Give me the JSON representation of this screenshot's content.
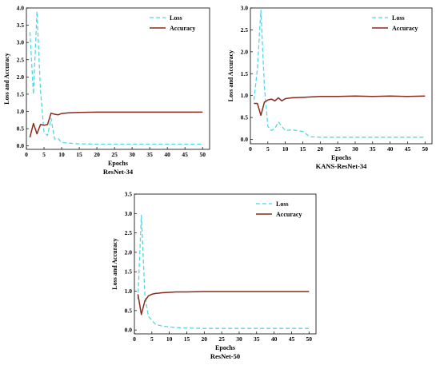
{
  "chart_data": [
    {
      "type": "line",
      "caption": "ResNet-34",
      "xlabel": "Epochs",
      "ylabel": "Loss and Accuracy",
      "xlim": [
        0,
        52
      ],
      "ylim": [
        -0.1,
        4.0
      ],
      "xticks": [
        "0",
        "5",
        "10",
        "15",
        "20",
        "25",
        "30",
        "35",
        "40",
        "45",
        "50"
      ],
      "yticks": [
        "0.0",
        "0.5",
        "1.0",
        "1.5",
        "2.0",
        "2.5",
        "3.0",
        "3.5",
        "4.0"
      ],
      "legend": "top-right",
      "series": [
        {
          "name": "Loss",
          "style": "dashed",
          "color": "#4fd8e6",
          "x": [
            1,
            2,
            3,
            4,
            5,
            6,
            7,
            8,
            9,
            10,
            12,
            15,
            20,
            25,
            30,
            35,
            40,
            45,
            50
          ],
          "y": [
            3.3,
            1.5,
            3.9,
            1.6,
            0.4,
            0.3,
            0.8,
            0.2,
            0.22,
            0.1,
            0.08,
            0.06,
            0.05,
            0.05,
            0.05,
            0.05,
            0.05,
            0.05,
            0.05
          ]
        },
        {
          "name": "Accuracy",
          "style": "solid",
          "color": "#8b2a1a",
          "x": [
            1,
            2,
            3,
            4,
            5,
            6,
            7,
            8,
            9,
            10,
            12,
            15,
            20,
            25,
            30,
            35,
            40,
            45,
            50
          ],
          "y": [
            0.25,
            0.65,
            0.35,
            0.62,
            0.6,
            0.62,
            0.95,
            0.92,
            0.9,
            0.94,
            0.96,
            0.97,
            0.98,
            0.98,
            0.98,
            0.98,
            0.98,
            0.98,
            0.98
          ]
        }
      ]
    },
    {
      "type": "line",
      "caption": "KANS-ResNet-34",
      "xlabel": "Epochs",
      "ylabel": "Loss and Accuracy",
      "xlim": [
        0,
        52
      ],
      "ylim": [
        -0.1,
        3.0
      ],
      "xticks": [
        "0",
        "5",
        "10",
        "15",
        "20",
        "25",
        "30",
        "35",
        "40",
        "45",
        "50"
      ],
      "yticks": [
        "0.0",
        "0.5",
        "1.0",
        "1.5",
        "2.0",
        "2.5",
        "3.0"
      ],
      "legend": "top-right",
      "series": [
        {
          "name": "Loss",
          "style": "dashed",
          "color": "#4fd8e6",
          "x": [
            1,
            2,
            3,
            4,
            5,
            6,
            7,
            8,
            9,
            10,
            12,
            15,
            17,
            20,
            25,
            30,
            35,
            40,
            45,
            50
          ],
          "y": [
            0.9,
            1.6,
            2.95,
            1.2,
            0.3,
            0.2,
            0.25,
            0.4,
            0.3,
            0.2,
            0.22,
            0.18,
            0.06,
            0.05,
            0.05,
            0.05,
            0.05,
            0.05,
            0.05,
            0.05
          ]
        },
        {
          "name": "Accuracy",
          "style": "solid",
          "color": "#8b2a1a",
          "x": [
            1,
            2,
            3,
            4,
            5,
            6,
            7,
            8,
            9,
            10,
            12,
            15,
            20,
            25,
            30,
            35,
            40,
            45,
            50
          ],
          "y": [
            0.82,
            0.82,
            0.55,
            0.85,
            0.9,
            0.92,
            0.88,
            0.95,
            0.88,
            0.93,
            0.95,
            0.96,
            0.98,
            0.98,
            0.99,
            0.98,
            0.99,
            0.98,
            0.99
          ]
        }
      ]
    },
    {
      "type": "line",
      "caption": "ResNet-50",
      "xlabel": "Epochs",
      "ylabel": "Loss and Accuracy",
      "xlim": [
        0,
        52
      ],
      "ylim": [
        -0.1,
        3.5
      ],
      "xticks": [
        "0",
        "5",
        "10",
        "15",
        "20",
        "25",
        "30",
        "35",
        "40",
        "45",
        "50"
      ],
      "yticks": [
        "0.0",
        "0.5",
        "1.0",
        "1.5",
        "2.0",
        "2.5",
        "3.0",
        "3.5"
      ],
      "legend": "top-right",
      "series": [
        {
          "name": "Loss",
          "style": "dashed",
          "color": "#4fd8e6",
          "x": [
            1,
            2,
            3,
            4,
            5,
            6,
            7,
            8,
            10,
            12,
            15,
            20,
            25,
            30,
            35,
            40,
            45,
            50
          ],
          "y": [
            0.8,
            2.95,
            0.9,
            0.35,
            0.25,
            0.15,
            0.12,
            0.1,
            0.08,
            0.06,
            0.05,
            0.04,
            0.04,
            0.04,
            0.04,
            0.04,
            0.04,
            0.04
          ]
        },
        {
          "name": "Accuracy",
          "style": "solid",
          "color": "#8b2a1a",
          "x": [
            1,
            2,
            3,
            4,
            5,
            6,
            7,
            8,
            10,
            12,
            15,
            20,
            25,
            30,
            35,
            40,
            45,
            50
          ],
          "y": [
            0.92,
            0.4,
            0.75,
            0.88,
            0.92,
            0.94,
            0.95,
            0.96,
            0.97,
            0.98,
            0.98,
            0.99,
            0.99,
            0.99,
            0.99,
            0.99,
            0.99,
            0.99
          ]
        }
      ]
    }
  ]
}
